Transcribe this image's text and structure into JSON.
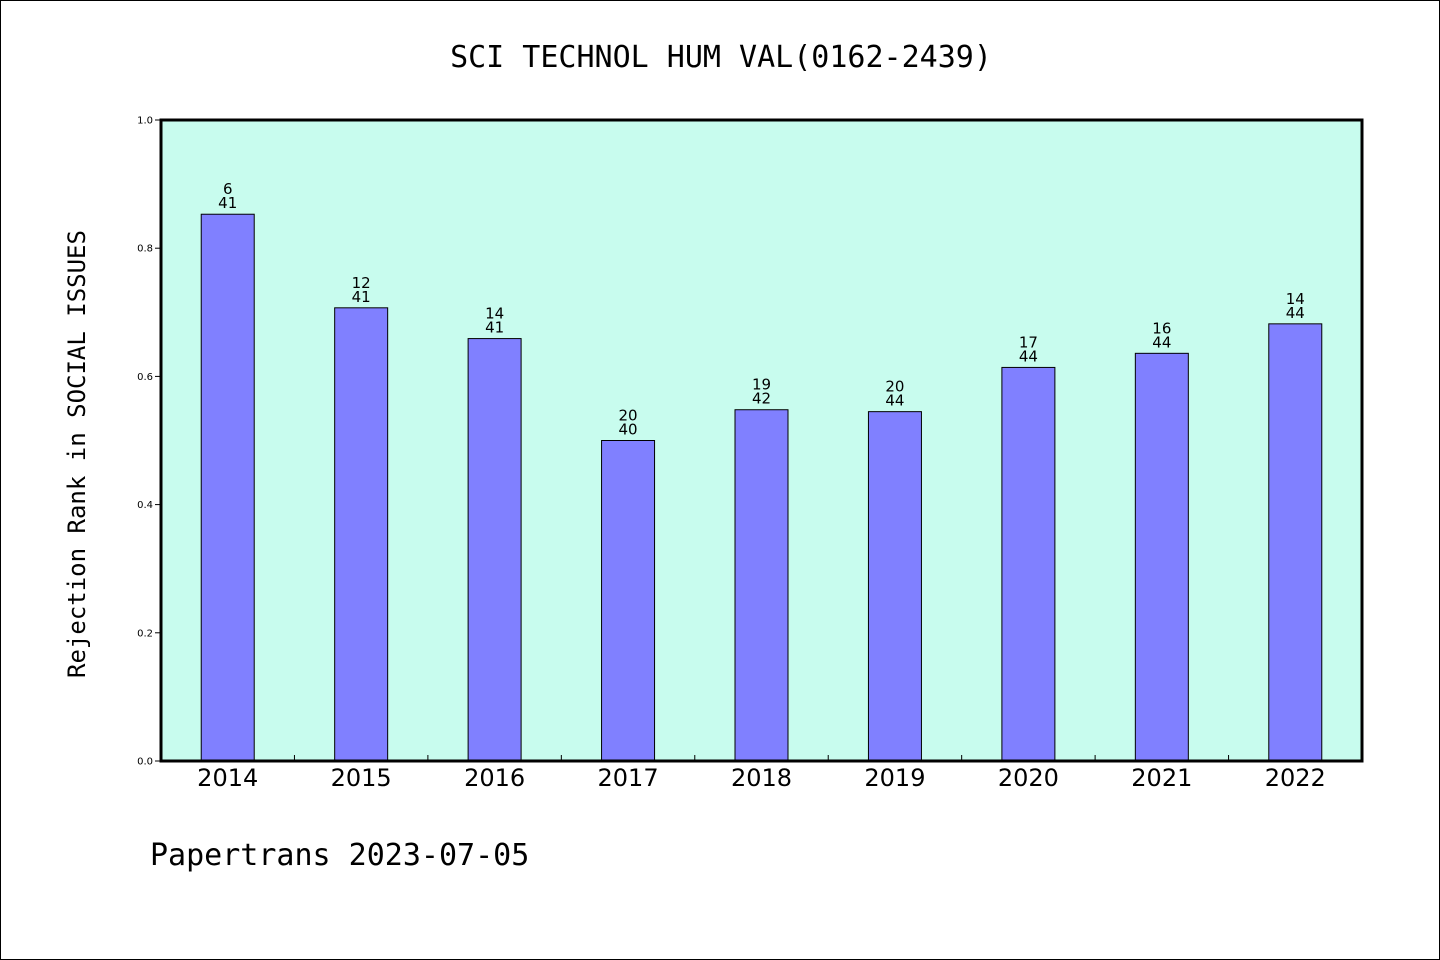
{
  "chart_data": {
    "type": "bar",
    "title": "SCI TECHNOL HUM VAL(0162-2439)",
    "ylabel": "Rejection Rank in SOCIAL ISSUES",
    "xlabel": "",
    "categories": [
      "2014",
      "2015",
      "2016",
      "2017",
      "2018",
      "2019",
      "2020",
      "2021",
      "2022"
    ],
    "values": [
      0.853,
      0.707,
      0.659,
      0.5,
      0.548,
      0.545,
      0.614,
      0.636,
      0.682
    ],
    "rank": [
      "6",
      "12",
      "14",
      "20",
      "19",
      "20",
      "17",
      "16",
      "14"
    ],
    "total": [
      "41",
      "41",
      "41",
      "40",
      "42",
      "44",
      "44",
      "44",
      "44"
    ],
    "ylim": [
      0,
      1.0
    ],
    "yticks": [
      "0.0",
      "0.2",
      "0.4",
      "0.6",
      "0.8",
      "1.0"
    ],
    "grid": false,
    "legend": "none",
    "colors": {
      "plot_bg": "#c8fcee",
      "bar_fill": "#8080ff",
      "bar_stroke": "#000000"
    }
  },
  "footer": {
    "text": "Papertrans 2023-07-05"
  }
}
